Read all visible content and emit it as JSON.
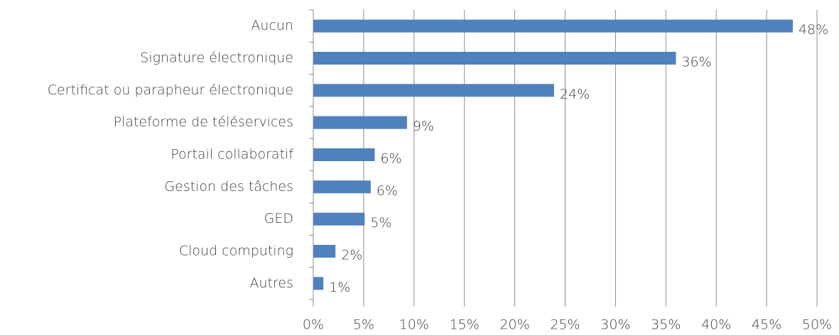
{
  "chart_data": {
    "type": "bar",
    "orientation": "horizontal",
    "categories": [
      "Aucun",
      "Signature électronique",
      "Certificat ou parapheur électronique",
      "Plateforme de téléservices",
      "Portail collaboratif",
      "Gestion des tâches",
      "GED",
      "Cloud computing",
      "Autres"
    ],
    "values": [
      47.6,
      36,
      23.9,
      9.3,
      6.1,
      5.7,
      5.1,
      2.2,
      1.0
    ],
    "value_labels": [
      "48%",
      "36%",
      "24%",
      "9%",
      "6%",
      "6%",
      "5%",
      "2%",
      "1%"
    ],
    "color": "#4f81bd",
    "xlim": [
      0,
      50
    ],
    "xticks": [
      {
        "value": 0,
        "label": "0%"
      },
      {
        "value": 5,
        "label": "5%"
      },
      {
        "value": 10,
        "label": "10%"
      },
      {
        "value": 15,
        "label": "15%"
      },
      {
        "value": 20,
        "label": "20%"
      },
      {
        "value": 25,
        "label": "25%"
      },
      {
        "value": 30,
        "label": "30%"
      },
      {
        "value": 35,
        "label": "35%"
      },
      {
        "value": 40,
        "label": "40%"
      },
      {
        "value": 45,
        "label": "45%"
      },
      {
        "value": 50,
        "label": "50%"
      }
    ],
    "grid": true
  }
}
